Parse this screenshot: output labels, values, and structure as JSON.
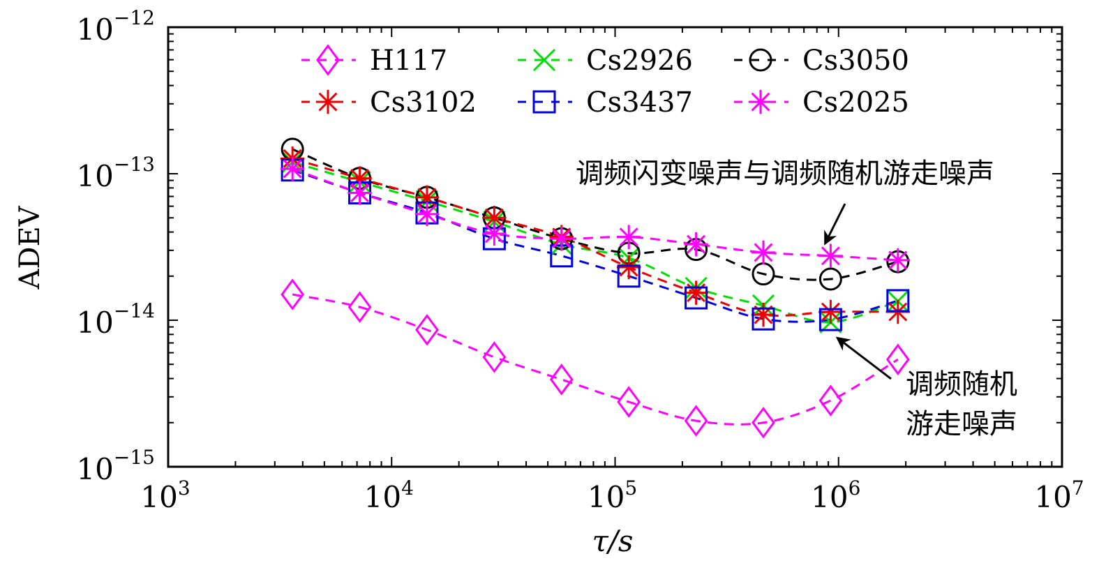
{
  "chart_data": {
    "type": "line",
    "title": "",
    "xlabel": "τ/s",
    "ylabel": "ADEV",
    "xscale": "log",
    "yscale": "log",
    "xlim": [
      1000,
      10000000
    ],
    "ylim": [
      1e-15,
      1e-12
    ],
    "x_ticks": [
      {
        "base": "10",
        "exp": "3",
        "value": 1000
      },
      {
        "base": "10",
        "exp": "4",
        "value": 10000
      },
      {
        "base": "10",
        "exp": "5",
        "value": 100000
      },
      {
        "base": "10",
        "exp": "6",
        "value": 1000000
      },
      {
        "base": "10",
        "exp": "7",
        "value": 10000000
      }
    ],
    "y_ticks": [
      {
        "base": "10",
        "exp": "−12",
        "value": 1e-12
      },
      {
        "base": "10",
        "exp": "−13",
        "value": 1e-13
      },
      {
        "base": "10",
        "exp": "−14",
        "value": 1e-14
      },
      {
        "base": "10",
        "exp": "−15",
        "value": 1e-15
      }
    ],
    "grid": false,
    "legend_position": "top",
    "x": [
      3600,
      7200,
      14400,
      28800,
      57600,
      115200,
      230400,
      460800,
      921600,
      1843200
    ],
    "series": [
      {
        "name": "H117",
        "color": "#ff00ff",
        "marker": "diamond",
        "values": [
          1.5e-14,
          1.23e-14,
          8.6e-15,
          5.6e-15,
          3.94e-15,
          2.77e-15,
          2.06e-15,
          2e-15,
          2.83e-15,
          5.4e-15
        ]
      },
      {
        "name": "Cs2926",
        "color": "#00e000",
        "marker": "x",
        "values": [
          1.2e-13,
          8.8e-14,
          6.5e-14,
          4.7e-14,
          3.3e-14,
          2.66e-14,
          1.66e-14,
          1.26e-14,
          9.7e-15,
          1.35e-14
        ]
      },
      {
        "name": "Cs3050",
        "color": "#000000",
        "marker": "circle",
        "values": [
          1.47e-13,
          9.3e-14,
          6.9e-14,
          5e-14,
          3.6e-14,
          2.87e-14,
          3.04e-14,
          2.07e-14,
          1.91e-14,
          2.51e-14
        ]
      },
      {
        "name": "Cs3102",
        "color": "#ee0000",
        "marker": "star",
        "values": [
          1.27e-13,
          9.3e-14,
          6.9e-14,
          5e-14,
          3.7e-14,
          2.3e-14,
          1.54e-14,
          1.09e-14,
          1.14e-14,
          1.14e-14
        ]
      },
      {
        "name": "Cs3437",
        "color": "#0000dd",
        "marker": "square",
        "values": [
          1.06e-13,
          7.4e-14,
          5.4e-14,
          3.6e-14,
          2.75e-14,
          2e-14,
          1.42e-14,
          1.02e-14,
          1.01e-14,
          1.36e-14
        ]
      },
      {
        "name": "Cs2025",
        "color": "#ff00ff",
        "marker": "star",
        "values": [
          1.08e-13,
          7.4e-14,
          5.3e-14,
          3.9e-14,
          3.6e-14,
          3.7e-14,
          3.3e-14,
          2.9e-14,
          2.75e-14,
          2.57e-14
        ]
      }
    ],
    "legend_order": [
      0,
      1,
      2,
      3,
      4,
      5
    ],
    "annotations": [
      {
        "text": "调频闪变噪声与调频随机游走噪声",
        "arrow_from": [
          1800000,
          1.7e-13
        ],
        "arrow_to": [
          920000,
          2.8e-14
        ]
      },
      {
        "lines": [
          "调频随机",
          "游走噪声"
        ],
        "arrow_from": [
          2100000,
          5.8e-15
        ],
        "arrow_to": [
          1000000,
          9.3e-15
        ]
      }
    ]
  }
}
